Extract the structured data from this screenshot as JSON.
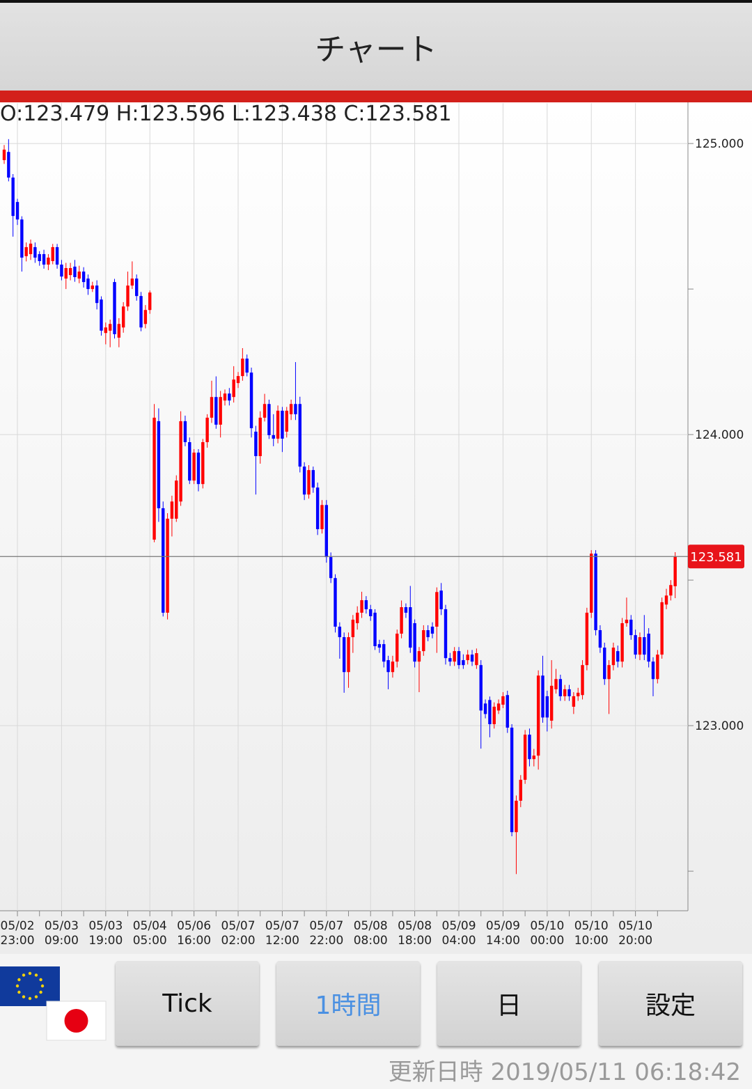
{
  "header": {
    "title": "チャート"
  },
  "chart_data": {
    "type": "candlestick",
    "ohlc_text": "O:123.479 H:123.596 L:123.438 C:123.581",
    "last_price": 123.581,
    "up_color": "#ff0000",
    "down_color": "#0000ff",
    "grid": true,
    "ylim": [
      122.364,
      125.139
    ],
    "yticks": [
      {
        "value": 125,
        "label": "125.000"
      },
      {
        "value": 124,
        "label": "124.000"
      },
      {
        "value": 123,
        "label": "123.000"
      }
    ],
    "minor_yticks": [
      124.5,
      123.5,
      122.5
    ],
    "categories": [
      null,
      null,
      null,
      "05/02\n23:00",
      null,
      null,
      null,
      null,
      null,
      null,
      null,
      null,
      null,
      "05/03\n09:00",
      null,
      null,
      null,
      null,
      null,
      null,
      null,
      null,
      null,
      "05/03\n19:00",
      null,
      null,
      null,
      null,
      null,
      null,
      null,
      null,
      null,
      "05/04\n05:00",
      null,
      null,
      null,
      null,
      null,
      null,
      null,
      null,
      null,
      "05/06\n16:00",
      null,
      null,
      null,
      null,
      null,
      null,
      null,
      null,
      null,
      "05/07\n02:00",
      null,
      null,
      null,
      null,
      null,
      null,
      null,
      null,
      null,
      "05/07\n12:00",
      null,
      null,
      null,
      null,
      null,
      null,
      null,
      null,
      null,
      "05/07\n22:00",
      null,
      null,
      null,
      null,
      null,
      null,
      null,
      null,
      null,
      "05/08\n08:00",
      null,
      null,
      null,
      null,
      null,
      null,
      null,
      null,
      null,
      "05/08\n18:00",
      null,
      null,
      null,
      null,
      null,
      null,
      null,
      null,
      null,
      "05/09\n04:00",
      null,
      null,
      null,
      null,
      null,
      null,
      null,
      null,
      null,
      "05/09\n14:00",
      null,
      null,
      null,
      null,
      null,
      null,
      null,
      null,
      null,
      "05/10\n00:00",
      null,
      null,
      null,
      null,
      null,
      null,
      null,
      null,
      null,
      "05/10\n10:00",
      null,
      null,
      null,
      null,
      null,
      null,
      null,
      null,
      null,
      "05/10\n20:00",
      null,
      null,
      null,
      null,
      null,
      null,
      null,
      null,
      null
    ],
    "open": [
      124.943,
      124.971,
      124.883,
      124.799,
      124.739,
      124.613,
      124.62,
      124.644,
      124.62,
      124.62,
      124.584,
      124.596,
      124.644,
      124.584,
      124.536,
      124.548,
      124.577,
      124.536,
      124.56,
      124.536,
      124.5,
      124.512,
      124.464,
      124.349,
      124.357,
      124.524,
      124.333,
      124.368,
      124.44,
      124.512,
      124.536,
      124.476,
      124.38,
      124.428,
      123.639,
      124.046,
      123.747,
      123.388,
      123.711,
      123.711,
      123.77,
      124.046,
      123.974,
      123.842,
      123.938,
      123.83,
      123.974,
      124.058,
      124.129,
      124.034,
      124.117,
      124.141,
      124.129,
      124.177,
      124.201,
      124.261,
      124.213,
      124.01,
      123.926,
      124.058,
      124.105,
      123.998,
      123.986,
      124.082,
      124.01,
      124.07,
      124.105,
      124.105,
      123.89,
      123.794,
      123.878,
      123.818,
      123.675,
      123.758,
      123.579,
      123.507,
      123.34,
      123.304,
      123.184,
      123.304,
      123.352,
      123.388,
      123.431,
      123.4,
      123.388,
      123.28,
      123.28,
      123.225,
      123.184,
      123.22,
      123.316,
      123.407,
      123.407,
      123.352,
      123.22,
      123.256,
      123.328,
      123.34,
      123.34,
      123.464,
      123.4,
      123.232,
      123.22,
      123.256,
      123.225,
      123.225,
      123.244,
      123.208,
      123.208,
      123.076,
      123.088,
      123.005,
      123.052,
      123.072,
      123.105,
      122.993,
      122.634,
      122.742,
      122.814,
      122.969,
      122.885,
      122.897,
      123.172,
      123.101,
      123.017,
      123.125,
      123.16,
      123.101,
      123.125,
      123.065,
      123.101,
      123.105,
      123.208,
      123.388,
      123.591,
      123.328,
      123.268,
      123.16,
      123.208,
      123.256,
      123.22,
      123.352,
      123.364,
      123.311,
      123.244,
      123.304,
      123.316,
      123.22,
      123.16,
      123.244,
      123.416,
      123.447,
      123.479
    ],
    "high": [
      124.995,
      125.015,
      124.895,
      124.81,
      124.75,
      124.66,
      124.67,
      124.66,
      124.63,
      124.635,
      124.62,
      124.655,
      124.655,
      124.6,
      124.59,
      124.59,
      124.6,
      124.58,
      124.575,
      124.55,
      124.525,
      124.53,
      124.475,
      124.385,
      124.395,
      124.535,
      124.4,
      124.455,
      124.56,
      124.595,
      124.55,
      124.49,
      124.445,
      124.495,
      124.105,
      124.09,
      123.77,
      123.73,
      123.79,
      123.86,
      124.08,
      124.065,
      123.99,
      123.95,
      123.95,
      123.985,
      124.07,
      124.185,
      124.2,
      124.15,
      124.155,
      124.16,
      124.235,
      124.215,
      124.297,
      124.275,
      124.23,
      124.03,
      124.08,
      124.14,
      124.12,
      124.07,
      124.1,
      124.095,
      124.095,
      124.12,
      124.249,
      124.13,
      123.905,
      123.895,
      123.89,
      123.835,
      123.775,
      123.775,
      123.595,
      123.52,
      123.355,
      123.32,
      123.32,
      123.38,
      123.41,
      123.46,
      123.445,
      123.415,
      123.4,
      123.295,
      123.295,
      123.24,
      123.24,
      123.33,
      123.43,
      123.42,
      123.48,
      123.365,
      123.27,
      123.345,
      123.345,
      123.355,
      123.475,
      123.49,
      123.415,
      123.25,
      123.27,
      123.27,
      123.245,
      123.26,
      123.26,
      123.265,
      123.225,
      123.09,
      123.1,
      123.08,
      123.09,
      123.115,
      123.12,
      123.005,
      122.76,
      122.83,
      122.985,
      122.99,
      122.92,
      123.19,
      123.24,
      123.12,
      123.225,
      123.195,
      123.175,
      123.14,
      123.14,
      123.115,
      123.13,
      123.225,
      123.405,
      123.603,
      123.603,
      123.345,
      123.285,
      123.225,
      123.285,
      123.275,
      123.37,
      123.44,
      123.38,
      123.33,
      123.32,
      123.38,
      123.335,
      123.235,
      123.26,
      123.44,
      123.47,
      123.5,
      123.596
    ],
    "low": [
      124.93,
      124.87,
      124.68,
      124.72,
      124.56,
      124.595,
      124.6,
      124.59,
      124.58,
      124.57,
      124.565,
      124.585,
      124.57,
      124.53,
      124.5,
      124.53,
      124.525,
      124.52,
      124.505,
      124.48,
      124.49,
      124.43,
      124.34,
      124.31,
      124.3,
      124.33,
      124.3,
      124.35,
      124.425,
      124.5,
      124.46,
      124.355,
      124.365,
      124.415,
      123.63,
      123.7,
      123.375,
      123.365,
      123.65,
      123.7,
      123.755,
      123.96,
      123.83,
      123.83,
      123.805,
      123.815,
      123.955,
      124.04,
      124.02,
      123.99,
      124.1,
      124.1,
      124.11,
      124.16,
      124.185,
      124.2,
      123.99,
      123.794,
      123.9,
      124.045,
      123.985,
      123.96,
      123.97,
      123.94,
      123.99,
      124.05,
      124.05,
      123.87,
      123.775,
      123.78,
      123.8,
      123.655,
      123.66,
      123.56,
      123.49,
      123.32,
      123.23,
      123.113,
      123.13,
      123.25,
      123.33,
      123.37,
      123.385,
      123.36,
      123.26,
      123.25,
      123.2,
      123.125,
      123.165,
      123.2,
      123.3,
      123.37,
      123.25,
      123.2,
      123.115,
      123.24,
      123.29,
      123.3,
      123.25,
      123.38,
      123.21,
      123.205,
      123.205,
      123.195,
      123.195,
      123.21,
      123.205,
      123.195,
      122.921,
      123.025,
      122.96,
      122.99,
      123.04,
      123.06,
      122.975,
      122.62,
      122.49,
      122.72,
      122.8,
      122.86,
      122.86,
      122.849,
      123.01,
      122.98,
      122.99,
      123.11,
      123.085,
      123.085,
      123.085,
      123.04,
      123.085,
      123.09,
      123.19,
      123.37,
      123.31,
      123.25,
      123.14,
      123.04,
      123.19,
      123.2,
      123.2,
      123.34,
      123.295,
      123.23,
      123.225,
      123.225,
      123.2,
      123.101,
      123.145,
      123.23,
      123.4,
      123.43,
      123.438
    ],
    "close": [
      124.979,
      124.883,
      124.751,
      124.739,
      124.608,
      124.644,
      124.656,
      124.608,
      124.596,
      124.584,
      124.608,
      124.644,
      124.584,
      124.543,
      124.572,
      124.572,
      124.541,
      124.56,
      124.524,
      124.5,
      124.512,
      124.452,
      124.357,
      124.368,
      124.38,
      124.345,
      124.38,
      124.44,
      124.512,
      124.536,
      124.476,
      124.368,
      124.428,
      124.488,
      124.058,
      123.747,
      123.388,
      123.711,
      123.77,
      123.842,
      124.046,
      123.974,
      123.842,
      123.938,
      123.83,
      123.974,
      124.058,
      124.129,
      124.034,
      124.129,
      124.141,
      124.117,
      124.189,
      124.201,
      124.261,
      124.213,
      124.022,
      123.926,
      124.058,
      124.105,
      123.998,
      123.986,
      124.082,
      123.986,
      124.082,
      124.105,
      124.07,
      123.89,
      123.794,
      123.878,
      123.818,
      123.675,
      123.758,
      123.579,
      123.507,
      123.34,
      123.304,
      123.184,
      123.304,
      123.364,
      123.388,
      123.431,
      123.4,
      123.376,
      123.273,
      123.268,
      123.22,
      123.184,
      123.22,
      123.316,
      123.407,
      123.388,
      123.268,
      123.22,
      123.256,
      123.328,
      123.304,
      123.316,
      123.459,
      123.4,
      123.232,
      123.22,
      123.256,
      123.208,
      123.208,
      123.244,
      123.22,
      123.249,
      123.052,
      123.04,
      123.005,
      123.065,
      123.076,
      123.101,
      122.993,
      122.634,
      122.742,
      122.814,
      122.969,
      122.885,
      122.897,
      123.172,
      123.028,
      123.028,
      123.137,
      123.16,
      123.101,
      123.125,
      123.101,
      123.101,
      123.113,
      123.208,
      123.388,
      123.591,
      123.328,
      123.268,
      123.16,
      123.208,
      123.268,
      123.22,
      123.352,
      123.364,
      123.311,
      123.244,
      123.304,
      123.244,
      123.22,
      123.16,
      123.244,
      123.424,
      123.447,
      123.483,
      123.581
    ]
  },
  "buttons": [
    "Tick",
    "1時間",
    "日",
    "設定"
  ],
  "footer": {
    "updated": "更新日時 2019/05/11 06:18:42"
  }
}
